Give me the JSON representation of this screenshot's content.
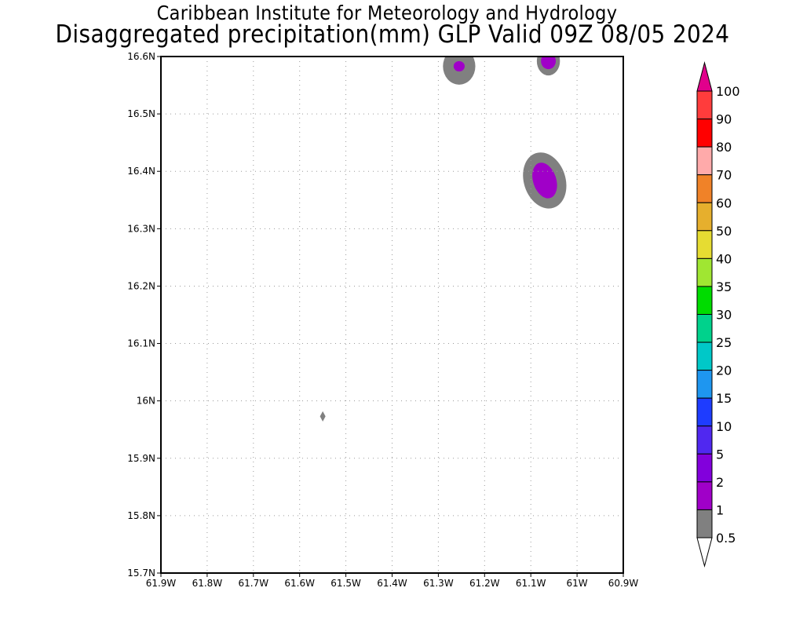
{
  "title": "Caribbean Institute for Meteorology and Hydrology",
  "subtitle": "Disaggregated precipitation(mm) GLP Valid 09Z 08/05 2024",
  "map": {
    "lon_range": [
      -61.9,
      -60.9
    ],
    "lat_range": [
      15.7,
      16.6
    ],
    "x_ticks": [
      {
        "lon": -61.9,
        "label": "61.9W"
      },
      {
        "lon": -61.8,
        "label": "61.8W"
      },
      {
        "lon": -61.7,
        "label": "61.7W"
      },
      {
        "lon": -61.6,
        "label": "61.6W"
      },
      {
        "lon": -61.5,
        "label": "61.5W"
      },
      {
        "lon": -61.4,
        "label": "61.4W"
      },
      {
        "lon": -61.3,
        "label": "61.3W"
      },
      {
        "lon": -61.2,
        "label": "61.2W"
      },
      {
        "lon": -61.1,
        "label": "61.1W"
      },
      {
        "lon": -61.0,
        "label": "61W"
      },
      {
        "lon": -60.9,
        "label": "60.9W"
      }
    ],
    "y_ticks": [
      {
        "lat": 15.7,
        "label": "15.7N"
      },
      {
        "lat": 15.8,
        "label": "15.8N"
      },
      {
        "lat": 15.9,
        "label": "15.9N"
      },
      {
        "lat": 16.0,
        "label": "16N"
      },
      {
        "lat": 16.1,
        "label": "16.1N"
      },
      {
        "lat": 16.2,
        "label": "16.2N"
      },
      {
        "lat": 16.3,
        "label": "16.3N"
      },
      {
        "lat": 16.4,
        "label": "16.4N"
      },
      {
        "lat": 16.5,
        "label": "16.5N"
      },
      {
        "lat": 16.6,
        "label": "16.6N"
      }
    ],
    "grid": true,
    "precip_cells": [
      {
        "lon": -61.255,
        "lat": 16.583,
        "rx_deg": 0.035,
        "ry_deg": 0.032,
        "inner_rx_deg": 0.012,
        "inner_ry_deg": 0.009,
        "outer_color": "#808080",
        "inner_color": "#a000c8",
        "rotate": 0
      },
      {
        "lon": -61.062,
        "lat": 16.592,
        "rx_deg": 0.025,
        "ry_deg": 0.025,
        "inner_rx_deg": 0.016,
        "inner_ry_deg": 0.014,
        "outer_color": "#808080",
        "inner_color": "#a000c8",
        "rotate": 0
      },
      {
        "lon": -61.07,
        "lat": 16.384,
        "rx_deg": 0.045,
        "ry_deg": 0.05,
        "inner_rx_deg": 0.025,
        "inner_ry_deg": 0.032,
        "outer_color": "#808080",
        "inner_color": "#a000c8",
        "rotate": -18
      },
      {
        "lon": -61.55,
        "lat": 15.973,
        "rx_deg": 0.006,
        "ry_deg": 0.009,
        "inner_rx_deg": 0,
        "inner_ry_deg": 0,
        "outer_color": "#808080",
        "inner_color": "#808080",
        "rotate": 0
      }
    ]
  },
  "colorbar": {
    "top_triangle_color": "#e1008c",
    "bottom_triangle_color": "#ffffff",
    "bins": [
      {
        "color": "#ff3c3c"
      },
      {
        "color": "#ff0000"
      },
      {
        "color": "#ffaaaa"
      },
      {
        "color": "#f08228"
      },
      {
        "color": "#e6af2d"
      },
      {
        "color": "#e6dc32"
      },
      {
        "color": "#a0e632"
      },
      {
        "color": "#00dc00"
      },
      {
        "color": "#00d28c"
      },
      {
        "color": "#00c8c8"
      },
      {
        "color": "#1e96f0"
      },
      {
        "color": "#1e3cff"
      },
      {
        "color": "#5028f0"
      },
      {
        "color": "#8200dc"
      },
      {
        "color": "#a000c8"
      },
      {
        "color": "#808080"
      }
    ],
    "labels": [
      "100",
      "90",
      "80",
      "70",
      "60",
      "50",
      "40",
      "35",
      "30",
      "25",
      "20",
      "15",
      "10",
      "5",
      "2",
      "1",
      "0.5"
    ]
  }
}
